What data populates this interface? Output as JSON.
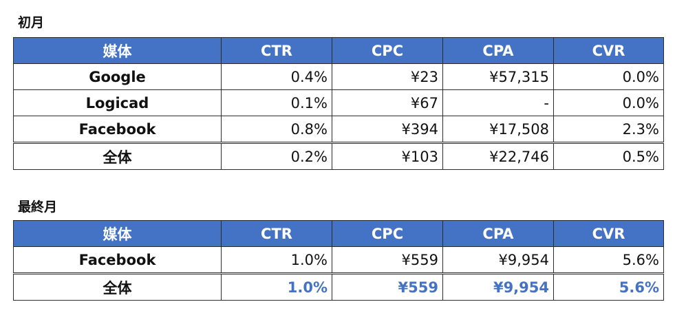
{
  "accent_color": "#4472c4",
  "header_color": "#4472c4",
  "first_month": {
    "title": "初月",
    "headers": [
      "媒体",
      "CTR",
      "CPC",
      "CPA",
      "CVR"
    ],
    "rows": [
      {
        "media": "Google",
        "ctr": "0.4%",
        "cpc": "¥23",
        "cpa": "¥57,315",
        "cvr": "0.0%"
      },
      {
        "media": "Logicad",
        "ctr": "0.1%",
        "cpc": "¥67",
        "cpa": "-",
        "cvr": "0.0%"
      },
      {
        "media": "Facebook",
        "ctr": "0.8%",
        "cpc": "¥394",
        "cpa": "¥17,508",
        "cvr": "2.3%"
      }
    ],
    "total": {
      "media": "全体",
      "ctr": "0.2%",
      "cpc": "¥103",
      "cpa": "¥22,746",
      "cvr": "0.5%"
    }
  },
  "last_month": {
    "title": "最終月",
    "headers": [
      "媒体",
      "CTR",
      "CPC",
      "CPA",
      "CVR"
    ],
    "rows": [
      {
        "media": "Facebook",
        "ctr": "1.0%",
        "cpc": "¥559",
        "cpa": "¥9,954",
        "cvr": "5.6%"
      }
    ],
    "total": {
      "media": "全体",
      "ctr": "1.0%",
      "cpc": "¥559",
      "cpa": "¥9,954",
      "cvr": "5.6%"
    }
  }
}
